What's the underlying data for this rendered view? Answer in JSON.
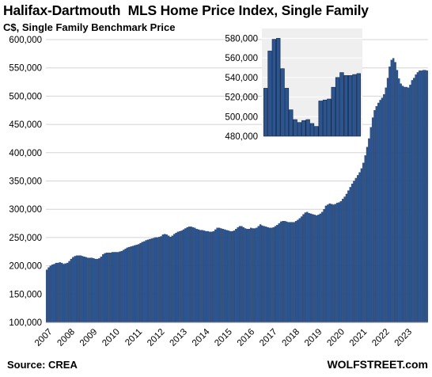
{
  "chart_data": [
    {
      "type": "bar",
      "title": "Halifax-Dartmouth  MLS Home Price Index, Single Family",
      "ylabel": "C$, Single Family Benchmark Price",
      "source": "Source: CREA",
      "credit": "WOLFSTREET.com",
      "ylim": [
        100000,
        600000
      ],
      "yticks": [
        100000,
        150000,
        200000,
        250000,
        300000,
        350000,
        400000,
        450000,
        500000,
        550000,
        600000
      ],
      "ytick_labels": [
        "100,000",
        "150,000",
        "200,000",
        "250,000",
        "300,000",
        "350,000",
        "400,000",
        "450,000",
        "500,000",
        "550,000",
        "600,000"
      ],
      "xtick_labels": [
        "2007",
        "2008",
        "2009",
        "2010",
        "2011",
        "2012",
        "2013",
        "2014",
        "2015",
        "2016",
        "2017",
        "2018",
        "2019",
        "2020",
        "2021",
        "2022",
        "2023"
      ],
      "bar_color": "#2c5590",
      "grid": true,
      "frequency": "monthly, Jan 2007 - Dec 2023",
      "annual_values": [
        [
          193000,
          197000,
          200000,
          202000,
          203000,
          205000,
          205000,
          206000,
          205000,
          203000,
          204000,
          205000
        ],
        [
          208000,
          212000,
          215000,
          217000,
          218000,
          218000,
          218000,
          217000,
          216000,
          215000,
          214000,
          214000
        ],
        [
          214000,
          213000,
          212000,
          212000,
          213000,
          216000,
          220000,
          222000,
          223000,
          223000,
          223000,
          224000
        ],
        [
          224000,
          224000,
          224000,
          225000,
          226000,
          228000,
          230000,
          232000,
          233000,
          234000,
          235000,
          236000
        ],
        [
          237000,
          238000,
          240000,
          242000,
          243000,
          245000,
          246000,
          247000,
          248000,
          249000,
          250000,
          250000
        ],
        [
          251000,
          252000,
          255000,
          256000,
          255000,
          253000,
          251000,
          253000,
          256000,
          258000,
          260000,
          261000
        ],
        [
          262000,
          264000,
          266000,
          268000,
          269000,
          269000,
          268000,
          267000,
          265000,
          264000,
          263000,
          263000
        ],
        [
          262000,
          261000,
          261000,
          260000,
          260000,
          261000,
          264000,
          267000,
          267000,
          266000,
          265000,
          264000
        ],
        [
          263000,
          262000,
          261000,
          261000,
          262000,
          265000,
          268000,
          270000,
          270000,
          268000,
          266000,
          265000
        ],
        [
          265000,
          267000,
          266000,
          266000,
          267000,
          270000,
          273000,
          271000,
          270000,
          269000,
          268000,
          267000
        ],
        [
          267000,
          268000,
          270000,
          272000,
          275000,
          278000,
          279000,
          279000,
          278000,
          277000,
          277000,
          277000
        ],
        [
          277000,
          279000,
          281000,
          284000,
          287000,
          291000,
          294000,
          295000,
          293000,
          292000,
          291000,
          290000
        ],
        [
          289000,
          290000,
          292000,
          295000,
          300000,
          306000,
          308000,
          310000,
          309000,
          308000,
          309000,
          311000
        ],
        [
          312000,
          314000,
          318000,
          322000,
          327000,
          333000,
          339000,
          345000,
          350000,
          355000,
          360000,
          365000
        ],
        [
          372000,
          382000,
          395000,
          410000,
          425000,
          445000,
          462000,
          475000,
          482000,
          488000,
          493000,
          497000
        ],
        [
          503000,
          515000,
          532000,
          552000,
          564000,
          567000,
          560000,
          546000,
          531000,
          522000,
          518000,
          516000
        ],
        [
          516000,
          515000,
          520000,
          528000,
          532000,
          538000,
          542000,
          545000,
          545000,
          546000,
          546000,
          545000
        ]
      ]
    },
    {
      "type": "bar",
      "title": "",
      "ylim": [
        480000,
        590000
      ],
      "yticks": [
        480000,
        500000,
        520000,
        540000,
        560000,
        580000
      ],
      "ytick_labels": [
        "480,000",
        "500,000",
        "520,000",
        "540,000",
        "560,000",
        "580,000"
      ],
      "bar_color": "#2c5590",
      "background": "#efefef",
      "grid": true,
      "values": [
        529000,
        567000,
        579000,
        580000,
        549000,
        529000,
        507000,
        497000,
        494000,
        496000,
        497000,
        493000,
        490000,
        516000,
        517000,
        518000,
        530000,
        540000,
        545000,
        542000,
        542000,
        543000,
        544000
      ]
    }
  ]
}
